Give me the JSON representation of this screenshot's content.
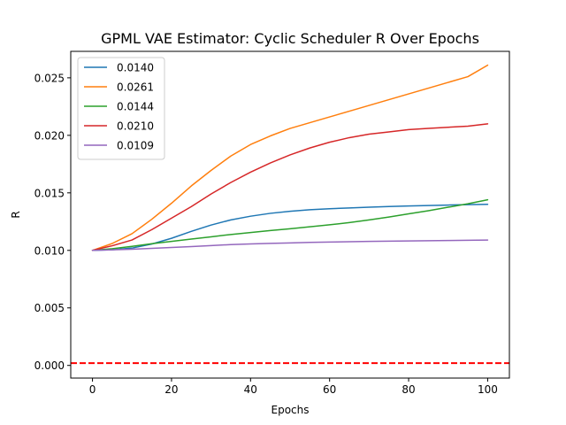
{
  "chart_data": {
    "type": "line",
    "title": "GPML VAE Estimator: Cyclic Scheduler R Over Epochs",
    "xlabel": "Epochs",
    "ylabel": "R",
    "xlim": [
      -5.5,
      105.5
    ],
    "ylim": [
      -0.0011,
      0.0273
    ],
    "x_ticks": [
      0,
      20,
      40,
      60,
      80,
      100
    ],
    "x_tick_labels": [
      "0",
      "20",
      "40",
      "60",
      "80",
      "100"
    ],
    "y_ticks": [
      0.0,
      0.005,
      0.01,
      0.015,
      0.02,
      0.025
    ],
    "y_tick_labels": [
      "0.000",
      "0.005",
      "0.010",
      "0.015",
      "0.020",
      "0.025"
    ],
    "grid": false,
    "legend_position": "top-left",
    "x": [
      0,
      5,
      10,
      15,
      20,
      25,
      30,
      35,
      40,
      45,
      50,
      55,
      60,
      65,
      70,
      75,
      80,
      85,
      90,
      95,
      100
    ],
    "series": [
      {
        "name": "0.0140",
        "color": "#1f77b4",
        "values": [
          0.01,
          0.01005,
          0.0102,
          0.01055,
          0.01105,
          0.01165,
          0.0122,
          0.01265,
          0.01297,
          0.01322,
          0.0134,
          0.01353,
          0.01362,
          0.01369,
          0.01375,
          0.01381,
          0.01386,
          0.0139,
          0.01394,
          0.01398,
          0.014
        ]
      },
      {
        "name": "0.0261",
        "color": "#ff7f0e",
        "values": [
          0.01,
          0.0106,
          0.01145,
          0.0127,
          0.0141,
          0.0156,
          0.01695,
          0.0182,
          0.0192,
          0.01995,
          0.0206,
          0.0211,
          0.0216,
          0.0221,
          0.0226,
          0.0231,
          0.0236,
          0.0241,
          0.0246,
          0.0251,
          0.0261
        ]
      },
      {
        "name": "0.0144",
        "color": "#2ca02c",
        "values": [
          0.01,
          0.01015,
          0.01035,
          0.01058,
          0.01078,
          0.01098,
          0.01118,
          0.01138,
          0.01155,
          0.01172,
          0.01188,
          0.01205,
          0.01222,
          0.01242,
          0.01265,
          0.0129,
          0.01318,
          0.01345,
          0.01375,
          0.01405,
          0.0144
        ]
      },
      {
        "name": "0.0210",
        "color": "#d62728",
        "values": [
          0.01,
          0.0104,
          0.0109,
          0.0118,
          0.0128,
          0.0138,
          0.0149,
          0.0159,
          0.0168,
          0.0176,
          0.0183,
          0.0189,
          0.0194,
          0.0198,
          0.0201,
          0.0203,
          0.0205,
          0.0206,
          0.0207,
          0.0208,
          0.021
        ]
      },
      {
        "name": "0.0109",
        "color": "#9467bd",
        "values": [
          0.01,
          0.01005,
          0.0101,
          0.01018,
          0.01025,
          0.01033,
          0.01042,
          0.0105,
          0.01056,
          0.01061,
          0.01065,
          0.01069,
          0.01072,
          0.01075,
          0.01078,
          0.0108,
          0.01082,
          0.01084,
          0.01086,
          0.01088,
          0.0109
        ]
      }
    ],
    "reference_line": {
      "y": 0.0002,
      "color": "#ff0000",
      "style": "dashed"
    }
  }
}
